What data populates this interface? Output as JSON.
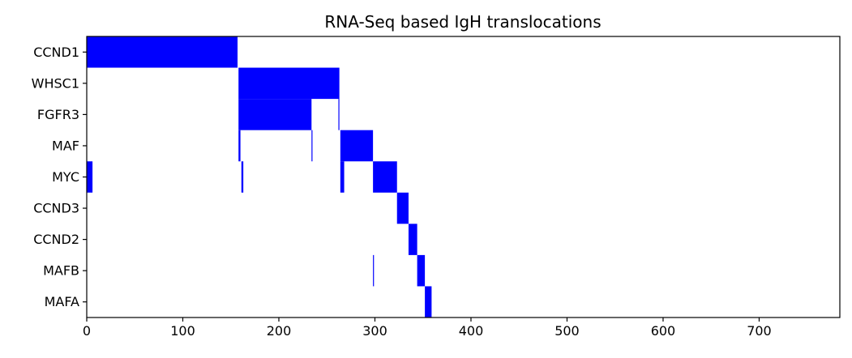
{
  "chart_data": {
    "type": "heatmap",
    "title": "RNA-Seq based IgH translocations",
    "xlabel": "",
    "ylabel": "",
    "xlim": [
      0,
      784
    ],
    "x_ticks": [
      0,
      100,
      200,
      300,
      400,
      500,
      600,
      700
    ],
    "categories": [
      "CCND1",
      "WHSC1",
      "FGFR3",
      "MAF",
      "MYC",
      "CCND3",
      "CCND2",
      "MAFB",
      "MAFA"
    ],
    "fill_color": "#0000ff",
    "background_color": "#ffffff",
    "grid": false,
    "rows": [
      {
        "name": "CCND1",
        "segments": [
          [
            0,
            157
          ]
        ]
      },
      {
        "name": "WHSC1",
        "segments": [
          [
            158,
            263
          ]
        ]
      },
      {
        "name": "FGFR3",
        "segments": [
          [
            158,
            234
          ],
          [
            262,
            263
          ]
        ]
      },
      {
        "name": "MAF",
        "segments": [
          [
            158,
            160
          ],
          [
            234,
            235
          ],
          [
            264,
            298
          ]
        ]
      },
      {
        "name": "MYC",
        "segments": [
          [
            0,
            6
          ],
          [
            161,
            163
          ],
          [
            264,
            268
          ],
          [
            298,
            323
          ]
        ]
      },
      {
        "name": "CCND3",
        "segments": [
          [
            323,
            335
          ]
        ]
      },
      {
        "name": "CCND2",
        "segments": [
          [
            335,
            344
          ]
        ]
      },
      {
        "name": "MAFB",
        "segments": [
          [
            298,
            299
          ],
          [
            344,
            352
          ]
        ]
      },
      {
        "name": "MAFA",
        "segments": [
          [
            352,
            359
          ]
        ]
      }
    ]
  }
}
